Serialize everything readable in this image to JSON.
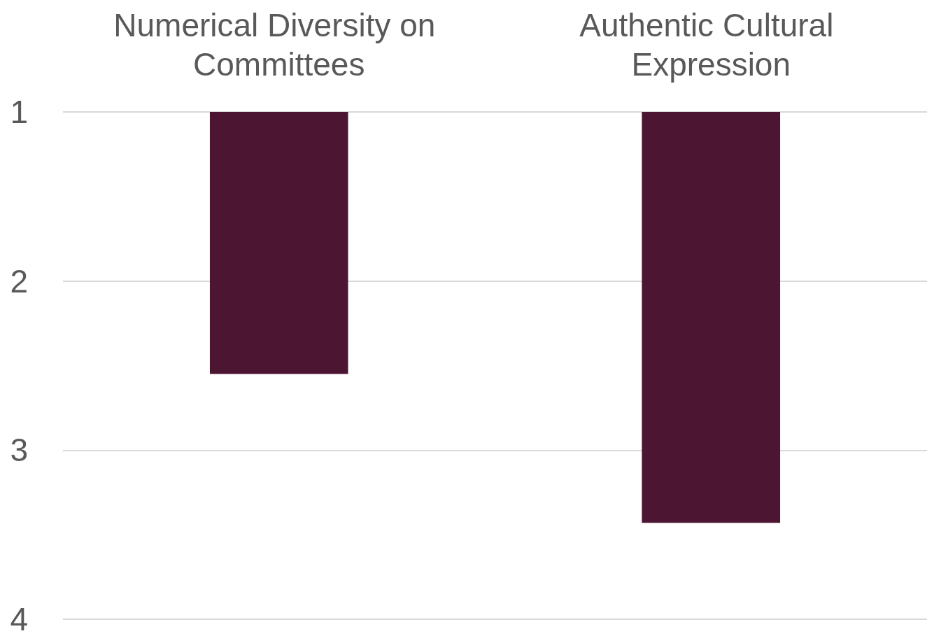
{
  "chart_data": {
    "type": "bar",
    "categories": [
      "Numerical Diversity on Committees",
      "Authentic Cultural Expression"
    ],
    "values": [
      2.55,
      3.43
    ],
    "color": "#4c1532",
    "ylim": [
      4,
      1
    ],
    "yticks": [
      1,
      2,
      3,
      4
    ],
    "grid": "y"
  }
}
